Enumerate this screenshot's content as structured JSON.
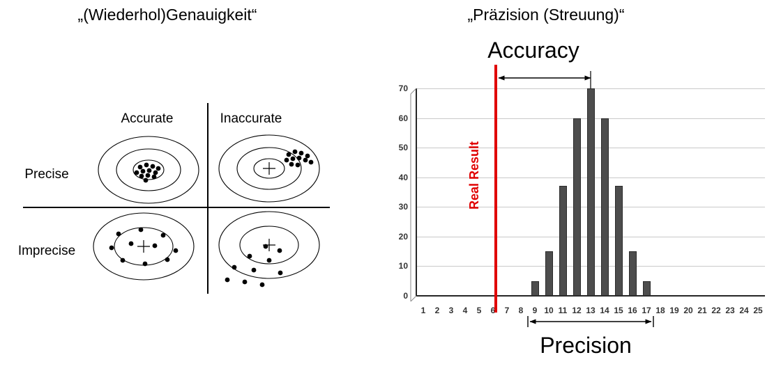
{
  "left_panel": {
    "title": "„(Wiederhol)Genauigkeit“",
    "col_headers": [
      "Accurate",
      "Inaccurate"
    ],
    "row_labels": [
      "Precise",
      "Imprecise"
    ],
    "targets": [
      {
        "name": "precise-accurate",
        "cross": false,
        "rings": [
          [
            72,
            48
          ],
          [
            46,
            30
          ],
          [
            22,
            14
          ]
        ],
        "dots": [
          [
            68,
            46
          ],
          [
            77,
            43
          ],
          [
            86,
            45
          ],
          [
            94,
            48
          ],
          [
            63,
            54
          ],
          [
            72,
            52
          ],
          [
            81,
            51
          ],
          [
            90,
            54
          ],
          [
            70,
            59
          ],
          [
            79,
            58
          ],
          [
            88,
            60
          ],
          [
            76,
            65
          ]
        ]
      },
      {
        "name": "precise-inaccurate",
        "cross": true,
        "rings": [
          [
            72,
            48
          ],
          [
            46,
            30
          ],
          [
            22,
            14
          ]
        ],
        "dots": [
          [
            108,
            30
          ],
          [
            117,
            26
          ],
          [
            126,
            28
          ],
          [
            135,
            32
          ],
          [
            105,
            38
          ],
          [
            114,
            36
          ],
          [
            123,
            35
          ],
          [
            132,
            38
          ],
          [
            140,
            41
          ],
          [
            112,
            44
          ],
          [
            121,
            45
          ]
        ]
      },
      {
        "name": "imprecise-accurate",
        "cross": true,
        "rings": [
          [
            72,
            48
          ],
          [
            42,
            27
          ]
        ],
        "dots": [
          [
            44,
            32
          ],
          [
            76,
            26
          ],
          [
            108,
            34
          ],
          [
            34,
            52
          ],
          [
            62,
            46
          ],
          [
            96,
            49
          ],
          [
            126,
            56
          ],
          [
            50,
            70
          ],
          [
            82,
            75
          ],
          [
            114,
            69
          ]
        ]
      },
      {
        "name": "imprecise-inaccurate",
        "cross": true,
        "rings": [
          [
            72,
            48
          ],
          [
            42,
            27
          ]
        ],
        "dots": [
          [
            75,
            52
          ],
          [
            95,
            58
          ],
          [
            52,
            66
          ],
          [
            80,
            72
          ],
          [
            30,
            82
          ],
          [
            58,
            86
          ],
          [
            96,
            90
          ],
          [
            20,
            100
          ],
          [
            45,
            103
          ],
          [
            70,
            107
          ]
        ]
      }
    ]
  },
  "right_panel": {
    "title": "„Präzision (Streuung)“",
    "accuracy_label": "Accuracy",
    "precision_label": "Precision",
    "real_result_label": "Real Result",
    "line_color": "#e00000",
    "bar_color": "#4d4d4d"
  },
  "chart_data": {
    "type": "bar",
    "title": "",
    "xlabel": "",
    "ylabel": "",
    "x": [
      1,
      2,
      3,
      4,
      5,
      6,
      7,
      8,
      9,
      10,
      11,
      12,
      13,
      14,
      15,
      16,
      17,
      18,
      19,
      20,
      21,
      22,
      23,
      24,
      25
    ],
    "values": [
      0,
      0,
      0,
      0,
      0,
      0,
      0,
      0,
      5,
      15,
      37,
      60,
      70,
      60,
      37,
      15,
      5,
      0,
      0,
      0,
      0,
      0,
      0,
      0,
      0
    ],
    "yticks": [
      0,
      10,
      20,
      30,
      40,
      50,
      60,
      70
    ],
    "ylim": [
      0,
      70
    ],
    "grid": true,
    "legend": false,
    "bar_color": "#4d4d4d",
    "annotations": {
      "real_result_x": 6.2,
      "accuracy_span": [
        6.2,
        13
      ],
      "precision_span": [
        8.5,
        17.5
      ]
    }
  }
}
